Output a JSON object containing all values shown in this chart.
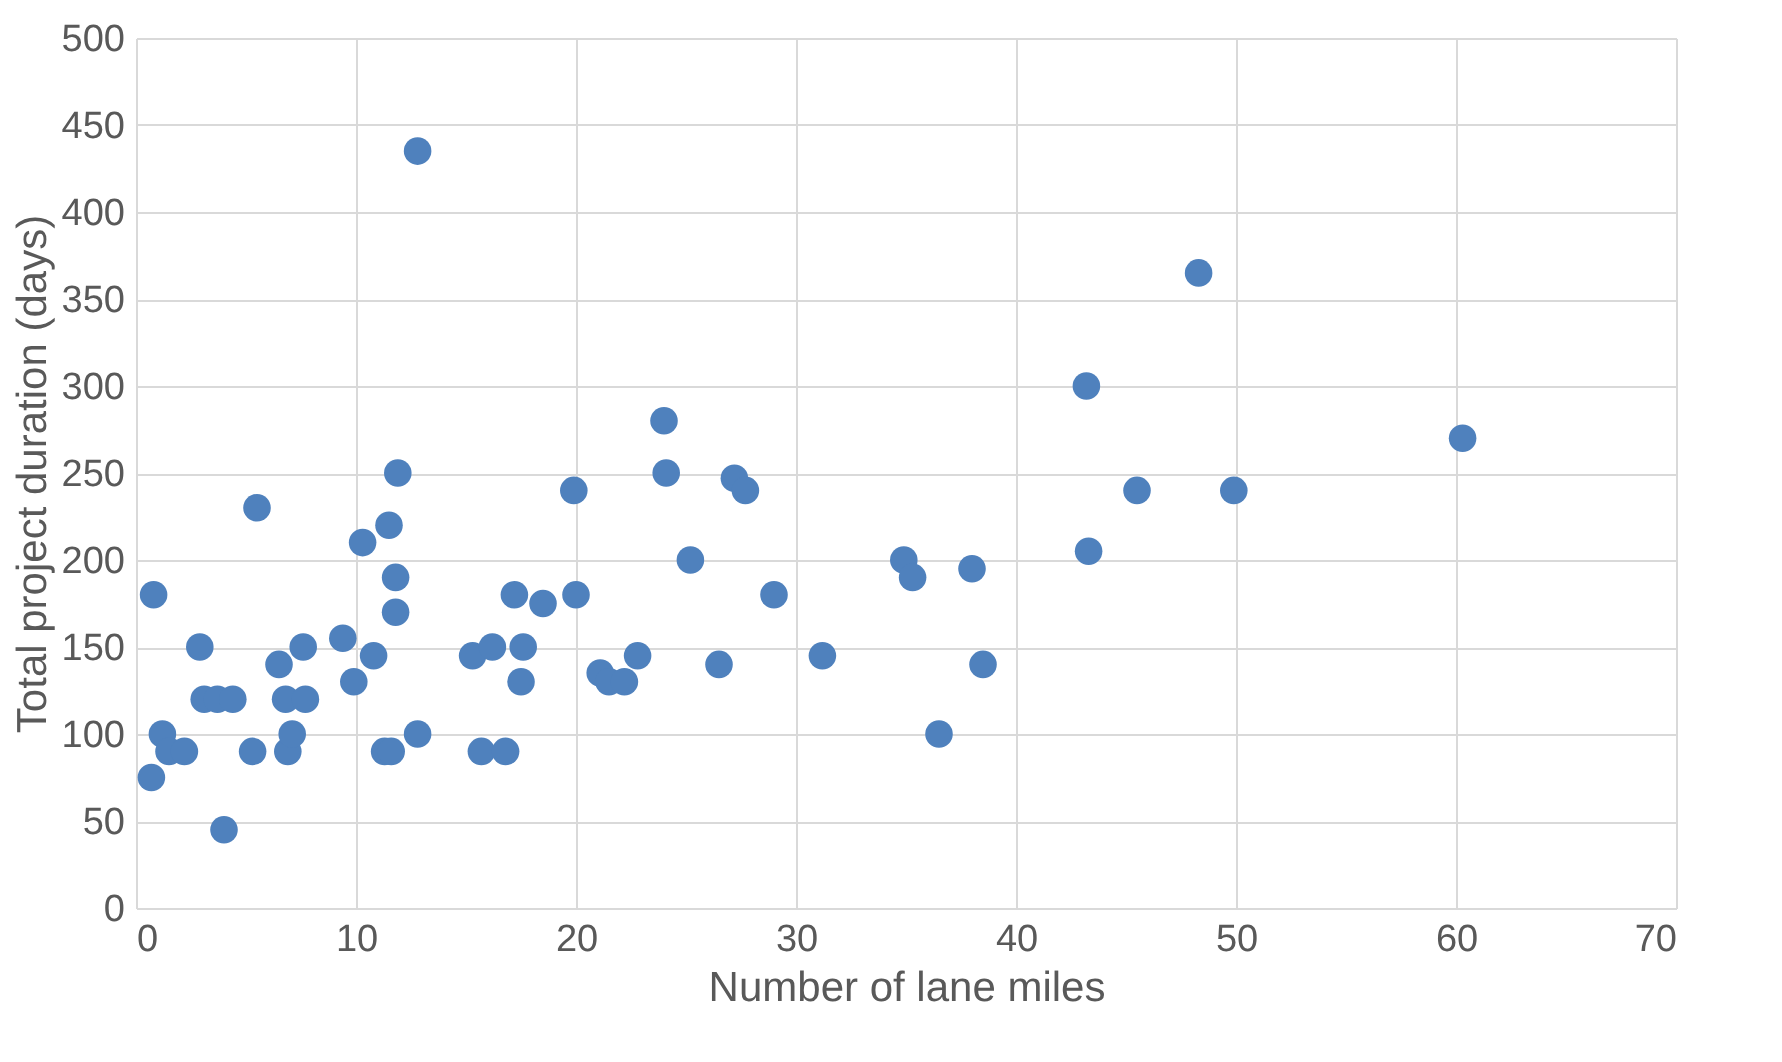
{
  "chart_data": {
    "type": "scatter",
    "xlabel": "Number of lane miles",
    "ylabel": "Total project duration (days)",
    "xlim": [
      0,
      70
    ],
    "xticks": [
      0,
      10,
      20,
      30,
      40,
      50,
      60,
      70
    ],
    "ylim": [
      0,
      500
    ],
    "yticks": [
      0,
      50,
      100,
      150,
      200,
      250,
      300,
      350,
      400,
      450,
      500
    ],
    "grid": true,
    "marker": "circle",
    "series": [
      {
        "color": "#4f81bd",
        "x": [
          0.7,
          0.8,
          1.2,
          1.5,
          2.2,
          2.9,
          3.1,
          3.7,
          4.0,
          4.4,
          5.3,
          5.5,
          6.5,
          6.8,
          6.9,
          7.1,
          7.6,
          7.7,
          9.4,
          9.9,
          10.3,
          10.8,
          11.3,
          11.5,
          11.6,
          11.8,
          11.8,
          11.9,
          12.8,
          12.8,
          15.3,
          15.7,
          16.2,
          16.8,
          17.2,
          17.5,
          17.6,
          18.5,
          19.9,
          20.0,
          21.1,
          21.5,
          22.2,
          22.8,
          24.0,
          24.1,
          25.2,
          26.5,
          27.2,
          27.7,
          29.0,
          31.2,
          34.9,
          35.3,
          36.5,
          38.0,
          38.5,
          43.2,
          43.3,
          45.5,
          48.3,
          49.9,
          60.3
        ],
        "values": [
          75,
          180,
          100,
          90,
          90,
          150,
          120,
          120,
          45,
          120,
          90,
          230,
          140,
          120,
          90,
          100,
          150,
          120,
          155,
          130,
          210,
          145,
          90,
          220,
          90,
          190,
          170,
          250,
          435,
          100,
          145,
          90,
          150,
          90,
          180,
          130,
          150,
          175,
          240,
          180,
          135,
          130,
          130,
          145,
          280,
          250,
          200,
          140,
          247,
          240,
          180,
          145,
          200,
          190,
          100,
          195,
          140,
          300,
          205,
          240,
          365,
          240,
          270
        ]
      }
    ]
  }
}
